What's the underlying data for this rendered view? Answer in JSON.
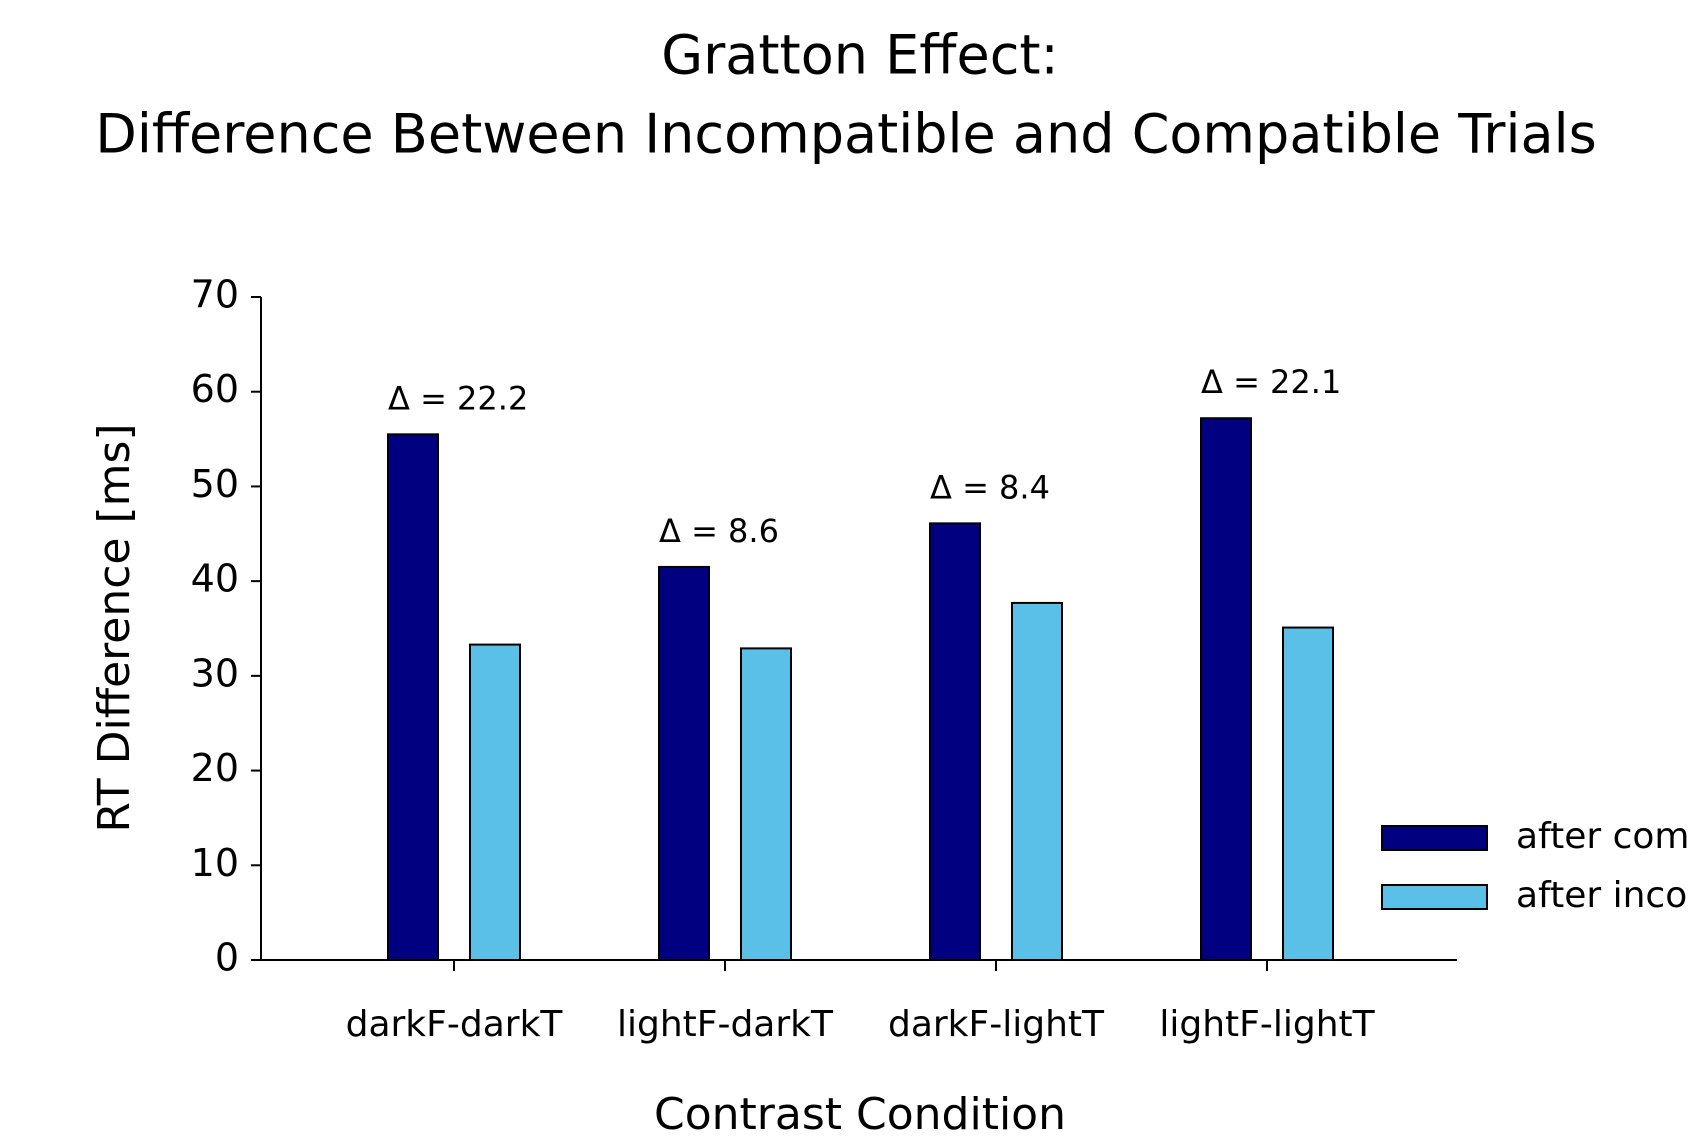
{
  "chart_data": {
    "type": "bar",
    "title": "Gratton Effect:",
    "subtitle": "Difference Between Incompatible and Compatible Trials",
    "x_label": "Contrast Condition",
    "y_label": "RT Difference [ms]",
    "categories": [
      "darkF-darkT",
      "lightF-darkT",
      "darkF-lightT",
      "lightF-lightT"
    ],
    "series": [
      {
        "name": "after com",
        "color": "#000080",
        "values": [
          55.5,
          41.5,
          46.1,
          57.2
        ]
      },
      {
        "name": "after inco",
        "color": "#5bc0e8",
        "values": [
          33.3,
          32.9,
          37.7,
          35.1
        ]
      }
    ],
    "annotations": [
      "Δ = 22.2",
      "Δ = 8.6",
      "Δ = 8.4",
      "Δ = 22.1"
    ],
    "ylim": [
      0,
      70
    ],
    "yticks": [
      0,
      10,
      20,
      30,
      40,
      50,
      60,
      70
    ],
    "grid": false,
    "legend": "right"
  }
}
